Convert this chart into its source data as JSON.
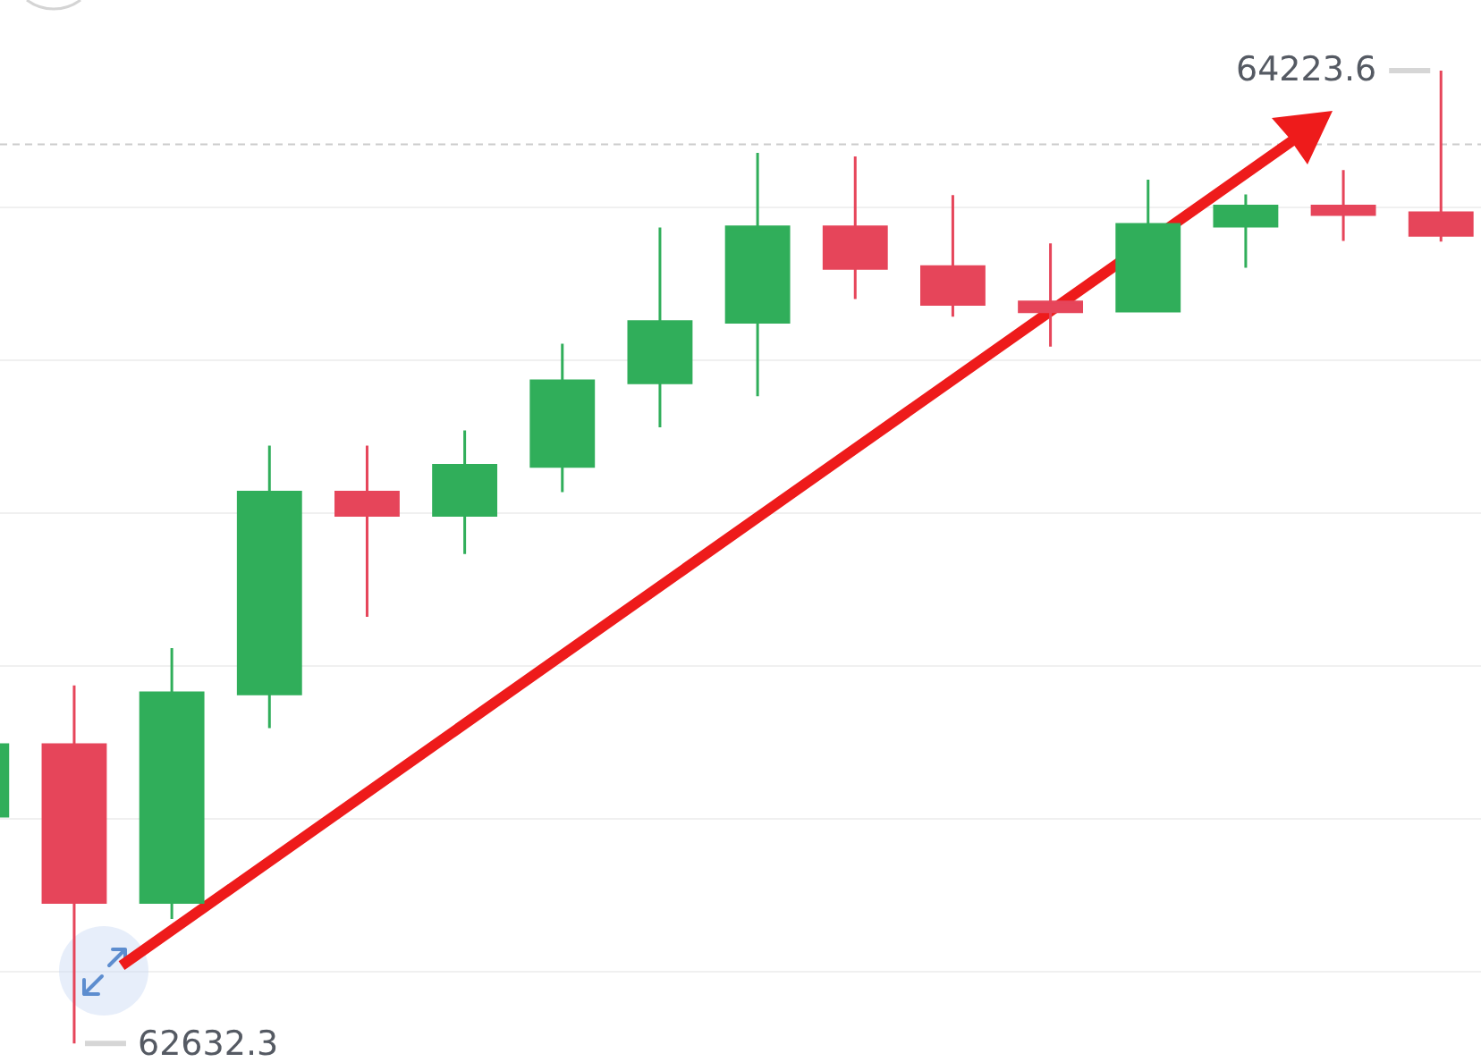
{
  "chart_data": {
    "type": "candlestick",
    "categories": [
      null,
      null,
      null,
      null,
      null,
      null,
      null,
      null,
      null,
      null,
      null,
      null,
      null,
      null,
      null,
      null
    ],
    "ohlc": [
      [
        63004,
        63121,
        63004,
        63121
      ],
      [
        63121,
        63218,
        62632.3,
        62863
      ],
      [
        62863,
        63279,
        62836,
        63206
      ],
      [
        63204,
        63610,
        63148,
        63534
      ],
      [
        63534,
        63610,
        63330,
        63496
      ],
      [
        63496,
        63635,
        63433,
        63578
      ],
      [
        63576,
        63777,
        63534,
        63716
      ],
      [
        63713,
        63967,
        63640,
        63813
      ],
      [
        63812,
        64089,
        63691,
        63968
      ],
      [
        63968,
        64083,
        63850,
        63900
      ],
      [
        63903,
        64020,
        63821,
        63841
      ],
      [
        63845,
        63941,
        63772,
        63829
      ],
      [
        63830,
        64045,
        63830,
        63972
      ],
      [
        63969,
        64021,
        63901,
        64002
      ],
      [
        64002,
        64061,
        63945,
        63988
      ],
      [
        63991,
        64223.6,
        63944,
        63954
      ]
    ],
    "colors": [
      "#30ae5a",
      "#e6455a",
      "#30ae5a",
      "#30ae5a",
      "#e6455a",
      "#30ae5a",
      "#30ae5a",
      "#30ae5a",
      "#30ae5a",
      "#e6455a",
      "#e6455a",
      "#e6455a",
      "#30ae5a",
      "#30ae5a",
      "#e6455a",
      "#e6455a"
    ],
    "ylim": [
      62602,
      64339
    ],
    "yticks": [
      {
        "value": 62750,
        "label": null
      },
      {
        "value": 63000,
        "label": null
      },
      {
        "value": 63250,
        "label": null
      },
      {
        "value": 63500,
        "label": null
      },
      {
        "value": 63750,
        "label": null
      },
      {
        "value": 64000,
        "label": null
      }
    ],
    "grid": "y",
    "ref_lines": [
      {
        "axis": "y",
        "value": 64103,
        "color": "#cccccc",
        "line_style": "dashed"
      }
    ],
    "annotations": [
      "64223.6",
      "62632.3"
    ]
  }
}
